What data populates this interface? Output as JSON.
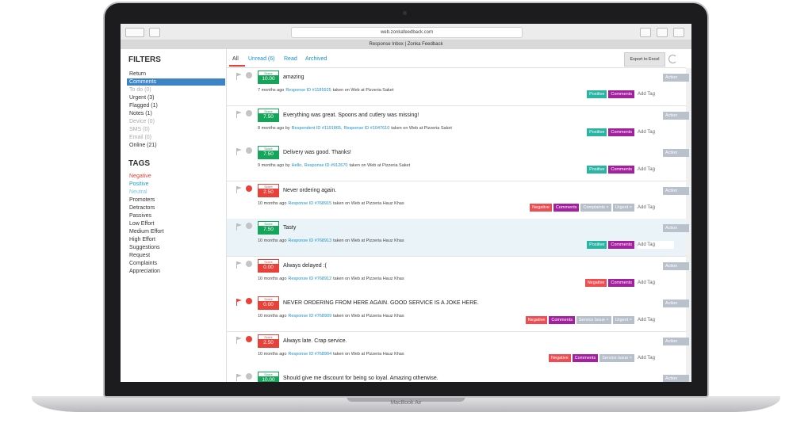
{
  "browser": {
    "url": "web.zonkafeedback.com",
    "tab_title": "Response Inbox | Zonka Feedback"
  },
  "sidebar": {
    "filters_title": "FILTERS",
    "filters": [
      {
        "label": "Return"
      },
      {
        "label": "Comments",
        "selected": true
      },
      {
        "label": "To do (0)",
        "muted": true
      },
      {
        "label": "Urgent (3)"
      },
      {
        "label": "Flagged (1)"
      },
      {
        "label": "Notes (1)"
      },
      {
        "label": "Device (0)",
        "muted": true
      },
      {
        "label": "SMS (0)",
        "muted": true
      },
      {
        "label": "Email (0)",
        "muted": true
      },
      {
        "label": "Online (21)"
      }
    ],
    "tags_title": "TAGS",
    "tags": [
      {
        "label": "Negative",
        "color": "#e8413a"
      },
      {
        "label": "Positive",
        "color": "#1a9fd0"
      },
      {
        "label": "Neutral",
        "color": "#7cc3e6"
      },
      {
        "label": "Promoters",
        "color": "#333333"
      },
      {
        "label": "Detractors",
        "color": "#333333"
      },
      {
        "label": "Passives",
        "color": "#333333"
      },
      {
        "label": "Low Effort",
        "color": "#333333"
      },
      {
        "label": "Medium Effort",
        "color": "#333333"
      },
      {
        "label": "High Effort",
        "color": "#333333"
      },
      {
        "label": "Suggestions",
        "color": "#333333"
      },
      {
        "label": "Request",
        "color": "#333333"
      },
      {
        "label": "Complaints",
        "color": "#333333"
      },
      {
        "label": "Appreciation",
        "color": "#333333"
      }
    ]
  },
  "tabs": [
    {
      "label": "All",
      "active": true
    },
    {
      "label": "Unread (6)"
    },
    {
      "label": "Read"
    },
    {
      "label": "Archived"
    }
  ],
  "export_button": "Export to Excel",
  "score_label": "Score",
  "action_label": "Action",
  "add_tag_label": "Add Tag",
  "tag_colors": {
    "positive": "#2bb3a3",
    "comments": "#a3209e",
    "negative": "#ee4d52",
    "gray": "#b7bfca"
  },
  "responses": [
    {
      "score": "10.00",
      "score_color": "#15a55a",
      "text": "amazing",
      "time": "7 months ago",
      "links": [
        "Response ID #1185925"
      ],
      "place": "taken on Web at Pizzeria Saket",
      "tags": [
        {
          "label": "Positive",
          "kind": "positive"
        },
        {
          "label": "Comments",
          "kind": "comments"
        }
      ]
    },
    {
      "score": "7.50",
      "score_color": "#15a55a",
      "text": "Everything was great. Spoons and cutlery was missing!",
      "time": "8 months ago by",
      "links": [
        "Respondent ID #1191865,",
        "Response ID #1047610"
      ],
      "place": "taken on Web at Pizzeria Saket",
      "tags": [
        {
          "label": "Positive",
          "kind": "positive"
        },
        {
          "label": "Comments",
          "kind": "comments"
        }
      ]
    },
    {
      "score": "7.50",
      "score_color": "#15a55a",
      "text": "Delivery was good. Thanks!",
      "time": "9 months ago by",
      "links": [
        "Hello,",
        "Response ID #912670"
      ],
      "place": "taken on Web at Pizzeria Saket",
      "tags": [
        {
          "label": "Positive",
          "kind": "positive"
        },
        {
          "label": "Comments",
          "kind": "comments"
        }
      ]
    },
    {
      "score": "2.50",
      "score_color": "#e8413a",
      "urgent": true,
      "text": "Never ordering again.",
      "time": "10 months ago",
      "links": [
        "Response ID #768915"
      ],
      "place": "taken on Web at Pizzeria Hauz Khas",
      "tags": [
        {
          "label": "Negative",
          "kind": "negative"
        },
        {
          "label": "Comments",
          "kind": "comments"
        },
        {
          "label": "Complaints ×",
          "kind": "gray"
        },
        {
          "label": "Urgent ×",
          "kind": "gray"
        }
      ]
    },
    {
      "score": "7.50",
      "score_color": "#15a55a",
      "selected": true,
      "text": "Tasty",
      "time": "10 months ago",
      "links": [
        "Response ID #768913"
      ],
      "place": "taken on Web at Pizzeria Hauz Khas",
      "tags": [
        {
          "label": "Positive",
          "kind": "positive"
        },
        {
          "label": "Comments",
          "kind": "comments"
        }
      ]
    },
    {
      "score": "0.00",
      "score_color": "#e8413a",
      "text": "Always delayed :(",
      "time": "10 months ago",
      "links": [
        "Response ID #768912"
      ],
      "place": "taken on Web at Pizzeria Hauz Khas",
      "tags": [
        {
          "label": "Negative",
          "kind": "negative"
        },
        {
          "label": "Comments",
          "kind": "comments"
        }
      ]
    },
    {
      "score": "0.00",
      "score_color": "#e8413a",
      "flagged": true,
      "urgent": true,
      "text": "NEVER ORDERING FROM HERE AGAIN. GOOD SERVICE IS A JOKE HERE.",
      "time": "10 months ago",
      "links": [
        "Response ID #768909"
      ],
      "place": "taken on Web at Pizzeria Hauz Khas",
      "tags": [
        {
          "label": "Negative",
          "kind": "negative"
        },
        {
          "label": "Comments",
          "kind": "comments"
        },
        {
          "label": "Service Issue ×",
          "kind": "gray"
        },
        {
          "label": "Urgent ×",
          "kind": "gray"
        }
      ]
    },
    {
      "score": "2.50",
      "score_color": "#e8413a",
      "urgent": true,
      "text": "Always late. Crap service.",
      "time": "10 months ago",
      "links": [
        "Response ID #768904"
      ],
      "place": "taken on Web at Pizzeria Hauz Khas",
      "tags": [
        {
          "label": "Negative",
          "kind": "negative"
        },
        {
          "label": "Comments",
          "kind": "comments"
        },
        {
          "label": "Service Issue ×",
          "kind": "gray"
        }
      ]
    },
    {
      "score": "10.00",
      "score_color": "#15a55a",
      "text": "Should give me discount for being so loyal. Amazing otherwise.",
      "time": "",
      "links": [],
      "place": "",
      "tags": []
    }
  ],
  "device_label": "MacBook Air"
}
